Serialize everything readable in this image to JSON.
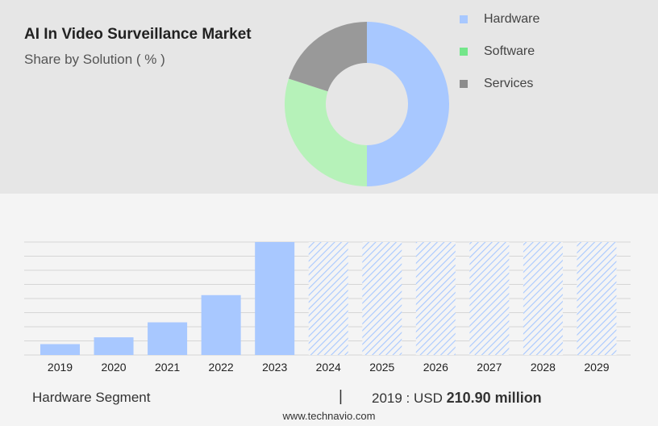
{
  "header": {
    "title": "AI In Video Surveillance Market",
    "subtitle": "Share by Solution ( % )"
  },
  "legend": [
    {
      "label": "Hardware",
      "color": "#a8c8ff"
    },
    {
      "label": "Software",
      "color": "#74e68a"
    },
    {
      "label": "Services",
      "color": "#8c8c8c"
    }
  ],
  "footer": {
    "segment": "Hardware Segment",
    "divider": "|",
    "year_label": "2019 : USD",
    "value": "210.90 million",
    "website": "www.technavio.com"
  },
  "chart_data": [
    {
      "type": "pie",
      "title": "AI In Video Surveillance Market",
      "subtitle": "Share by Solution ( % )",
      "categories": [
        "Hardware",
        "Software",
        "Services"
      ],
      "values": [
        50,
        30,
        20
      ],
      "colors": [
        "#a8c8ff",
        "#b6f2b9",
        "#999999"
      ],
      "hole": 0.5,
      "legend_position": "right"
    },
    {
      "type": "bar",
      "categories": [
        "2019",
        "2020",
        "2021",
        "2022",
        "2023",
        "2024",
        "2025",
        "2026",
        "2027",
        "2028",
        "2029"
      ],
      "values": [
        8,
        13,
        24,
        44,
        83,
        83,
        83,
        83,
        83,
        83,
        83
      ],
      "forecast_from": "2024",
      "ylim": [
        0,
        83
      ],
      "grid": true,
      "xlabel": "",
      "ylabel": "",
      "color": "#a8c8ff"
    }
  ]
}
